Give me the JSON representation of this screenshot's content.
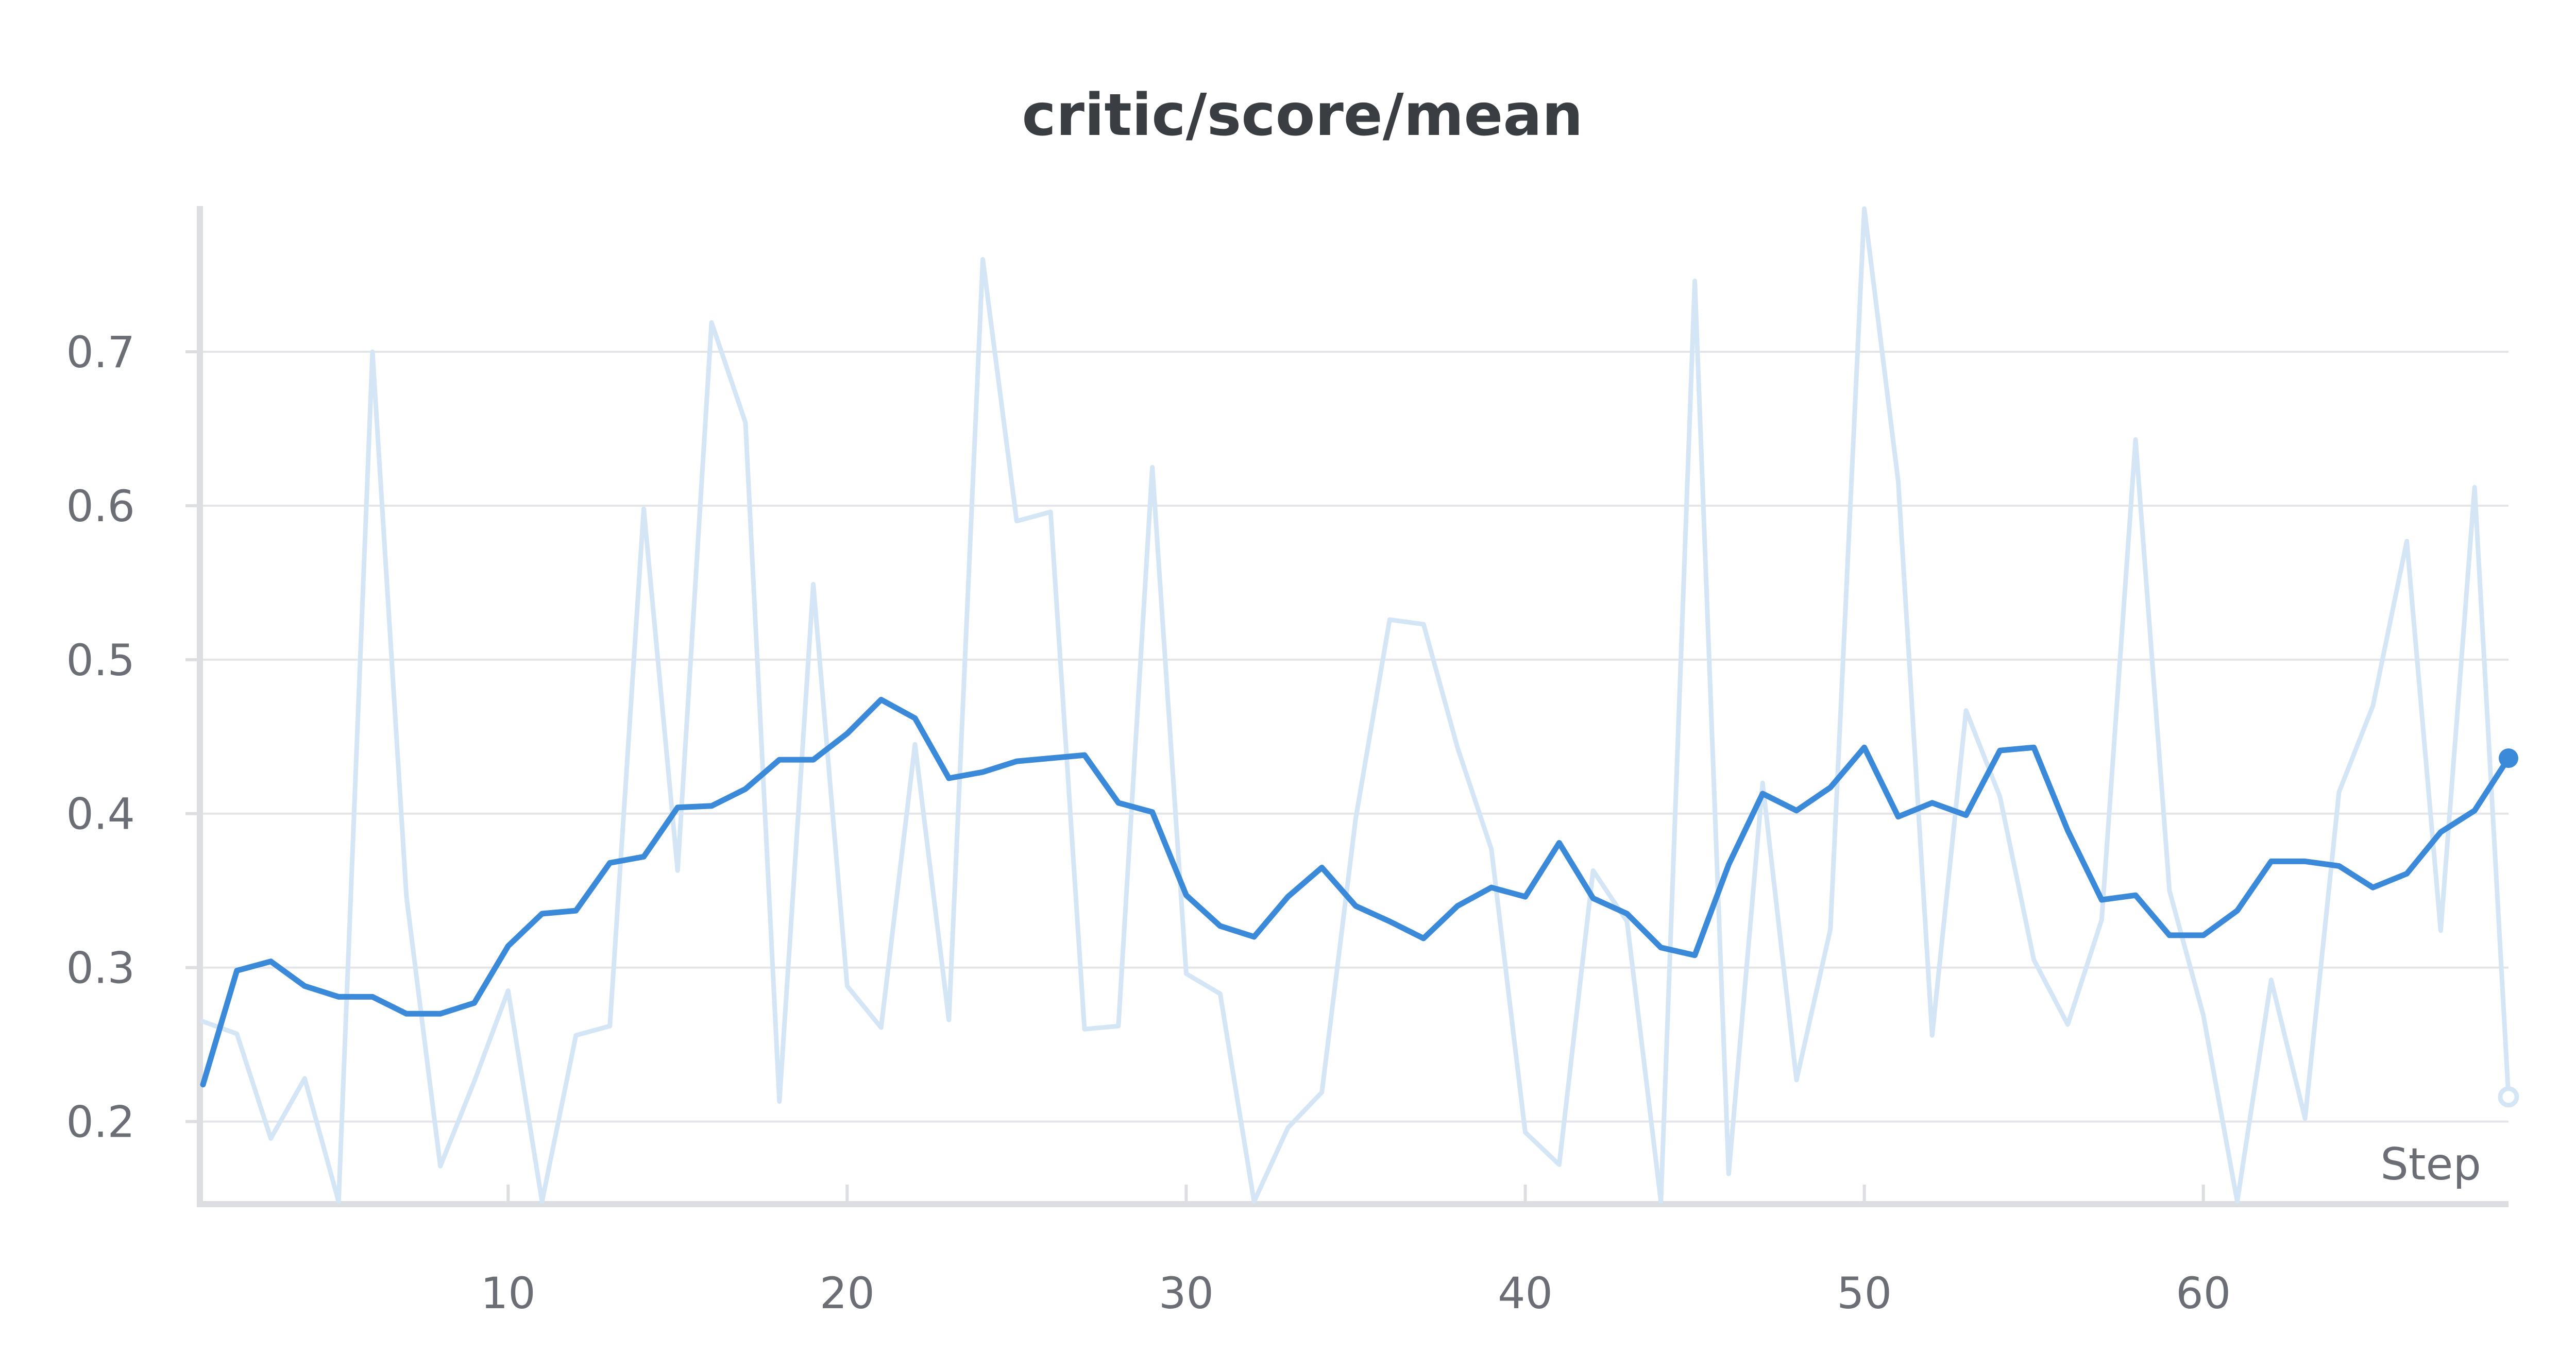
{
  "chart_data": {
    "type": "line",
    "title": "critic/score/mean",
    "xlabel": "Step",
    "ylabel": "",
    "xlim": [
      1,
      69
    ],
    "ylim": [
      0.148,
      0.793
    ],
    "x_ticks": [
      10,
      20,
      30,
      40,
      50,
      60
    ],
    "y_ticks": [
      0.2,
      0.3,
      0.4,
      0.5,
      0.6,
      0.7
    ],
    "grid": true,
    "legend": "none",
    "x": [
      1,
      2,
      3,
      4,
      5,
      6,
      7,
      8,
      9,
      10,
      11,
      12,
      13,
      14,
      15,
      16,
      17,
      18,
      19,
      20,
      21,
      22,
      23,
      24,
      25,
      26,
      27,
      28,
      29,
      30,
      31,
      32,
      33,
      34,
      35,
      36,
      37,
      38,
      39,
      40,
      41,
      42,
      43,
      44,
      45,
      46,
      47,
      48,
      49,
      50,
      51,
      52,
      53,
      54,
      55,
      56,
      57,
      58,
      59,
      60,
      61,
      62,
      63,
      64,
      65,
      66,
      67,
      68,
      69
    ],
    "series": [
      {
        "style": "raw",
        "color": "#d4e6f5",
        "values": [
          0.265,
          0.257,
          0.189,
          0.228,
          0.148,
          0.7,
          0.346,
          0.171,
          0.226,
          0.285,
          0.148,
          0.256,
          0.262,
          0.598,
          0.363,
          0.719,
          0.654,
          0.213,
          0.549,
          0.288,
          0.261,
          0.445,
          0.266,
          0.76,
          0.59,
          0.596,
          0.26,
          0.262,
          0.625,
          0.296,
          0.283,
          0.148,
          0.196,
          0.219,
          0.397,
          0.526,
          0.523,
          0.443,
          0.377,
          0.193,
          0.172,
          0.363,
          0.33,
          0.148,
          0.746,
          0.166,
          0.42,
          0.227,
          0.325,
          0.793,
          0.616,
          0.256,
          0.467,
          0.411,
          0.305,
          0.263,
          0.331,
          0.643,
          0.35,
          0.269,
          0.148,
          0.292,
          0.202,
          0.414,
          0.47,
          0.577,
          0.324,
          0.612,
          0.216
        ]
      },
      {
        "style": "smoothed",
        "color": "#3b8ad9",
        "values": [
          0.224,
          0.298,
          0.304,
          0.288,
          0.281,
          0.281,
          0.27,
          0.27,
          0.277,
          0.314,
          0.335,
          0.337,
          0.368,
          0.372,
          0.404,
          0.405,
          0.416,
          0.435,
          0.435,
          0.452,
          0.474,
          0.462,
          0.423,
          0.427,
          0.434,
          0.436,
          0.438,
          0.407,
          0.401,
          0.347,
          0.327,
          0.32,
          0.346,
          0.365,
          0.34,
          0.33,
          0.319,
          0.34,
          0.352,
          0.346,
          0.381,
          0.345,
          0.335,
          0.313,
          0.308,
          0.367,
          0.413,
          0.402,
          0.417,
          0.443,
          0.398,
          0.407,
          0.399,
          0.441,
          0.443,
          0.389,
          0.344,
          0.347,
          0.321,
          0.321,
          0.337,
          0.369,
          0.369,
          0.366,
          0.352,
          0.361,
          0.388,
          0.402,
          0.436
        ]
      }
    ]
  }
}
